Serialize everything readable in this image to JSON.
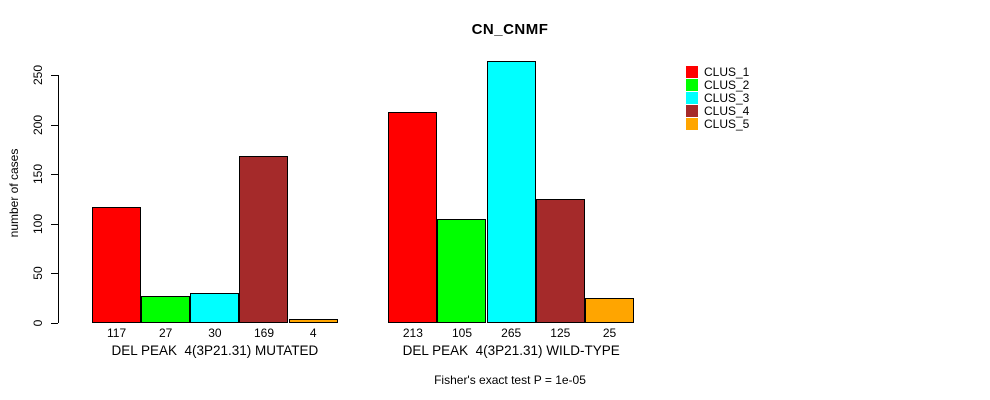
{
  "header": {
    "title": "CN_CNMF"
  },
  "footnote": "Fisher's exact test P = 1e-05",
  "chart_data": {
    "type": "bar",
    "title": "CN_CNMF",
    "xlabel": "",
    "ylabel": "number of cases",
    "ylim": [
      0,
      265
    ],
    "yticks": [
      0,
      50,
      100,
      150,
      200,
      250
    ],
    "grid": false,
    "legend_position": "top-right-outside",
    "legend": [
      {
        "label": "CLUS_1",
        "color": "#ff0000"
      },
      {
        "label": "CLUS_2",
        "color": "#00ff00"
      },
      {
        "label": "CLUS_3",
        "color": "#00ffff"
      },
      {
        "label": "CLUS_4",
        "color": "#a52a2a"
      },
      {
        "label": "CLUS_5",
        "color": "#ffa500"
      }
    ],
    "groups": [
      {
        "label": "DEL PEAK  4(3P21.31) MUTATED",
        "categories": [
          "CLUS_1",
          "CLUS_2",
          "CLUS_3",
          "CLUS_4",
          "CLUS_5"
        ],
        "values": [
          117,
          27,
          30,
          169,
          4
        ]
      },
      {
        "label": "DEL PEAK  4(3P21.31) WILD-TYPE",
        "categories": [
          "CLUS_1",
          "CLUS_2",
          "CLUS_3",
          "CLUS_4",
          "CLUS_5"
        ],
        "values": [
          213,
          105,
          265,
          125,
          25
        ]
      }
    ],
    "annotation": "Fisher's exact test P = 1e-05",
    "bar_value_labels_shown": true,
    "axis_color": "#000000",
    "background_color": "#ffffff"
  }
}
